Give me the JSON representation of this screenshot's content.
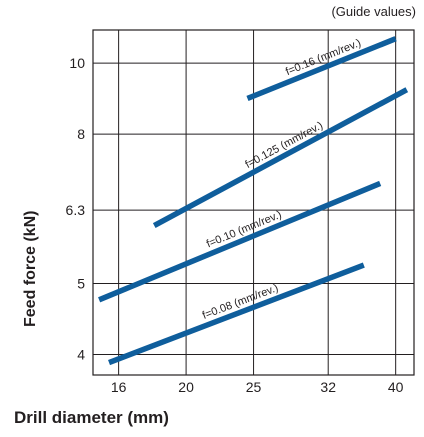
{
  "chart_data": {
    "type": "line",
    "note": "(Guide values)",
    "xlabel": "Drill diameter (mm)",
    "ylabel": "Feed force (kN)",
    "x_scale": "log",
    "y_scale": "log",
    "x_ticks": [
      16,
      20,
      25,
      32,
      40
    ],
    "y_ticks": [
      4,
      5,
      6.3,
      8,
      10
    ],
    "xlim": [
      14.7,
      42.5
    ],
    "ylim": [
      3.75,
      11.1
    ],
    "grid": true,
    "line_color": "#0f5e9c",
    "series": [
      {
        "name": "f=0.16 (mm/rev.)",
        "x": [
          24.5,
          40.0
        ],
        "y": [
          8.95,
          10.8
        ]
      },
      {
        "name": "f=0.125 (mm/rev.)",
        "x": [
          18.0,
          41.5
        ],
        "y": [
          6.0,
          9.2
        ]
      },
      {
        "name": "f=0.10 (mm/rev.)",
        "x": [
          15.0,
          38.0
        ],
        "y": [
          4.75,
          6.85
        ]
      },
      {
        "name": "f=0.08 (mm/rev.)",
        "x": [
          15.5,
          36.0
        ],
        "y": [
          3.9,
          5.3
        ]
      }
    ]
  }
}
